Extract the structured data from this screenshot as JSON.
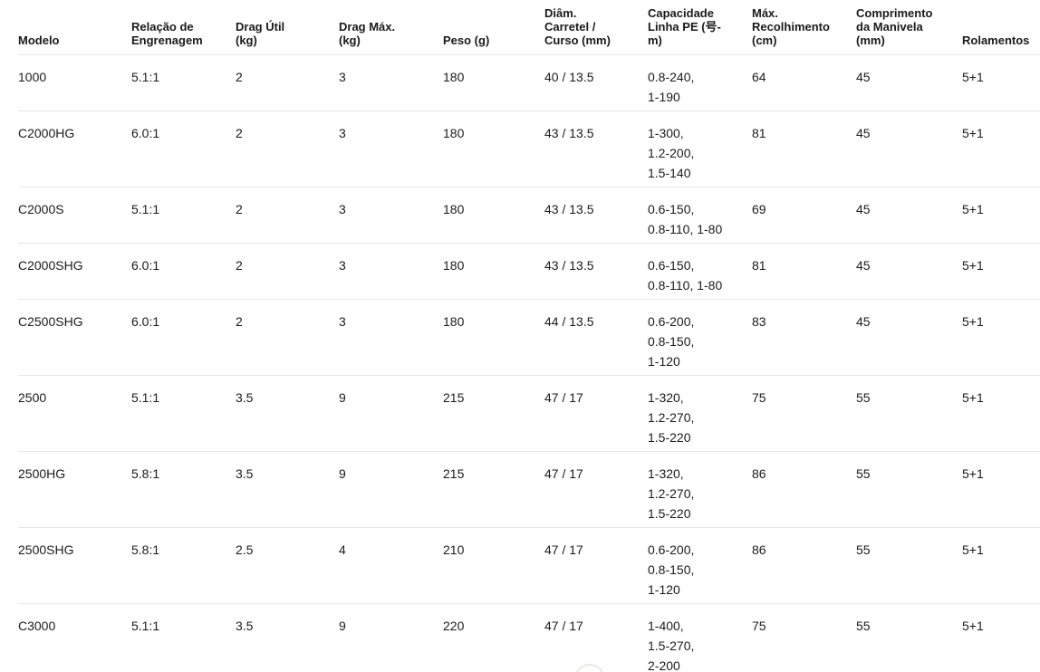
{
  "table": {
    "columns": [
      {
        "id": "modelo",
        "label": "Modelo"
      },
      {
        "id": "relacao-engrenagem",
        "label": "Relação de\nEngrenagem"
      },
      {
        "id": "drag-util",
        "label": "Drag Útil\n(kg)"
      },
      {
        "id": "drag-max",
        "label": "Drag Máx.\n(kg)"
      },
      {
        "id": "peso",
        "label": "Peso (g)"
      },
      {
        "id": "diam-carretel-curso",
        "label": "Diâm.\nCarretel /\nCurso (mm)"
      },
      {
        "id": "capacidade-linha-pe",
        "label": "Capacidade\nLinha PE (号-\nm)"
      },
      {
        "id": "max-recolhimento",
        "label": "Máx.\nRecolhimento\n(cm)"
      },
      {
        "id": "comprimento-manivela",
        "label": "Comprimento\nda Manivela\n(mm)"
      },
      {
        "id": "rolamentos",
        "label": "Rolamentos"
      }
    ],
    "rows": [
      [
        "1000",
        "5.1:1",
        "2",
        "3",
        "180",
        "40 / 13.5",
        "0.8-240,\n1-190",
        "64",
        "45",
        "5+1"
      ],
      [
        "C2000HG",
        "6.0:1",
        "2",
        "3",
        "180",
        "43 / 13.5",
        "1-300,\n1.2-200,\n1.5-140",
        "81",
        "45",
        "5+1"
      ],
      [
        "C2000S",
        "5.1:1",
        "2",
        "3",
        "180",
        "43 / 13.5",
        "0.6-150,\n0.8-110, 1-80",
        "69",
        "45",
        "5+1"
      ],
      [
        "C2000SHG",
        "6.0:1",
        "2",
        "3",
        "180",
        "43 / 13.5",
        "0.6-150,\n0.8-110, 1-80",
        "81",
        "45",
        "5+1"
      ],
      [
        "C2500SHG",
        "6.0:1",
        "2",
        "3",
        "180",
        "44 / 13.5",
        "0.6-200,\n0.8-150,\n1-120",
        "83",
        "45",
        "5+1"
      ],
      [
        "2500",
        "5.1:1",
        "3.5",
        "9",
        "215",
        "47 / 17",
        "1-320,\n1.2-270,\n1.5-220",
        "75",
        "55",
        "5+1"
      ],
      [
        "2500HG",
        "5.8:1",
        "3.5",
        "9",
        "215",
        "47 / 17",
        "1-320,\n1.2-270,\n1.5-220",
        "86",
        "55",
        "5+1"
      ],
      [
        "2500SHG",
        "5.8:1",
        "2.5",
        "4",
        "210",
        "47 / 17",
        "0.6-200,\n0.8-150,\n1-120",
        "86",
        "55",
        "5+1"
      ],
      [
        "C3000",
        "5.1:1",
        "3.5",
        "9",
        "220",
        "47 / 17",
        "1-400,\n1.5-270,\n2-200",
        "75",
        "55",
        "5+1"
      ]
    ]
  },
  "colors": {
    "text": "#1a1a1a",
    "row_border": "#e8e8e8",
    "background": "#ffffff",
    "fab_border": "#ebe8e6"
  }
}
